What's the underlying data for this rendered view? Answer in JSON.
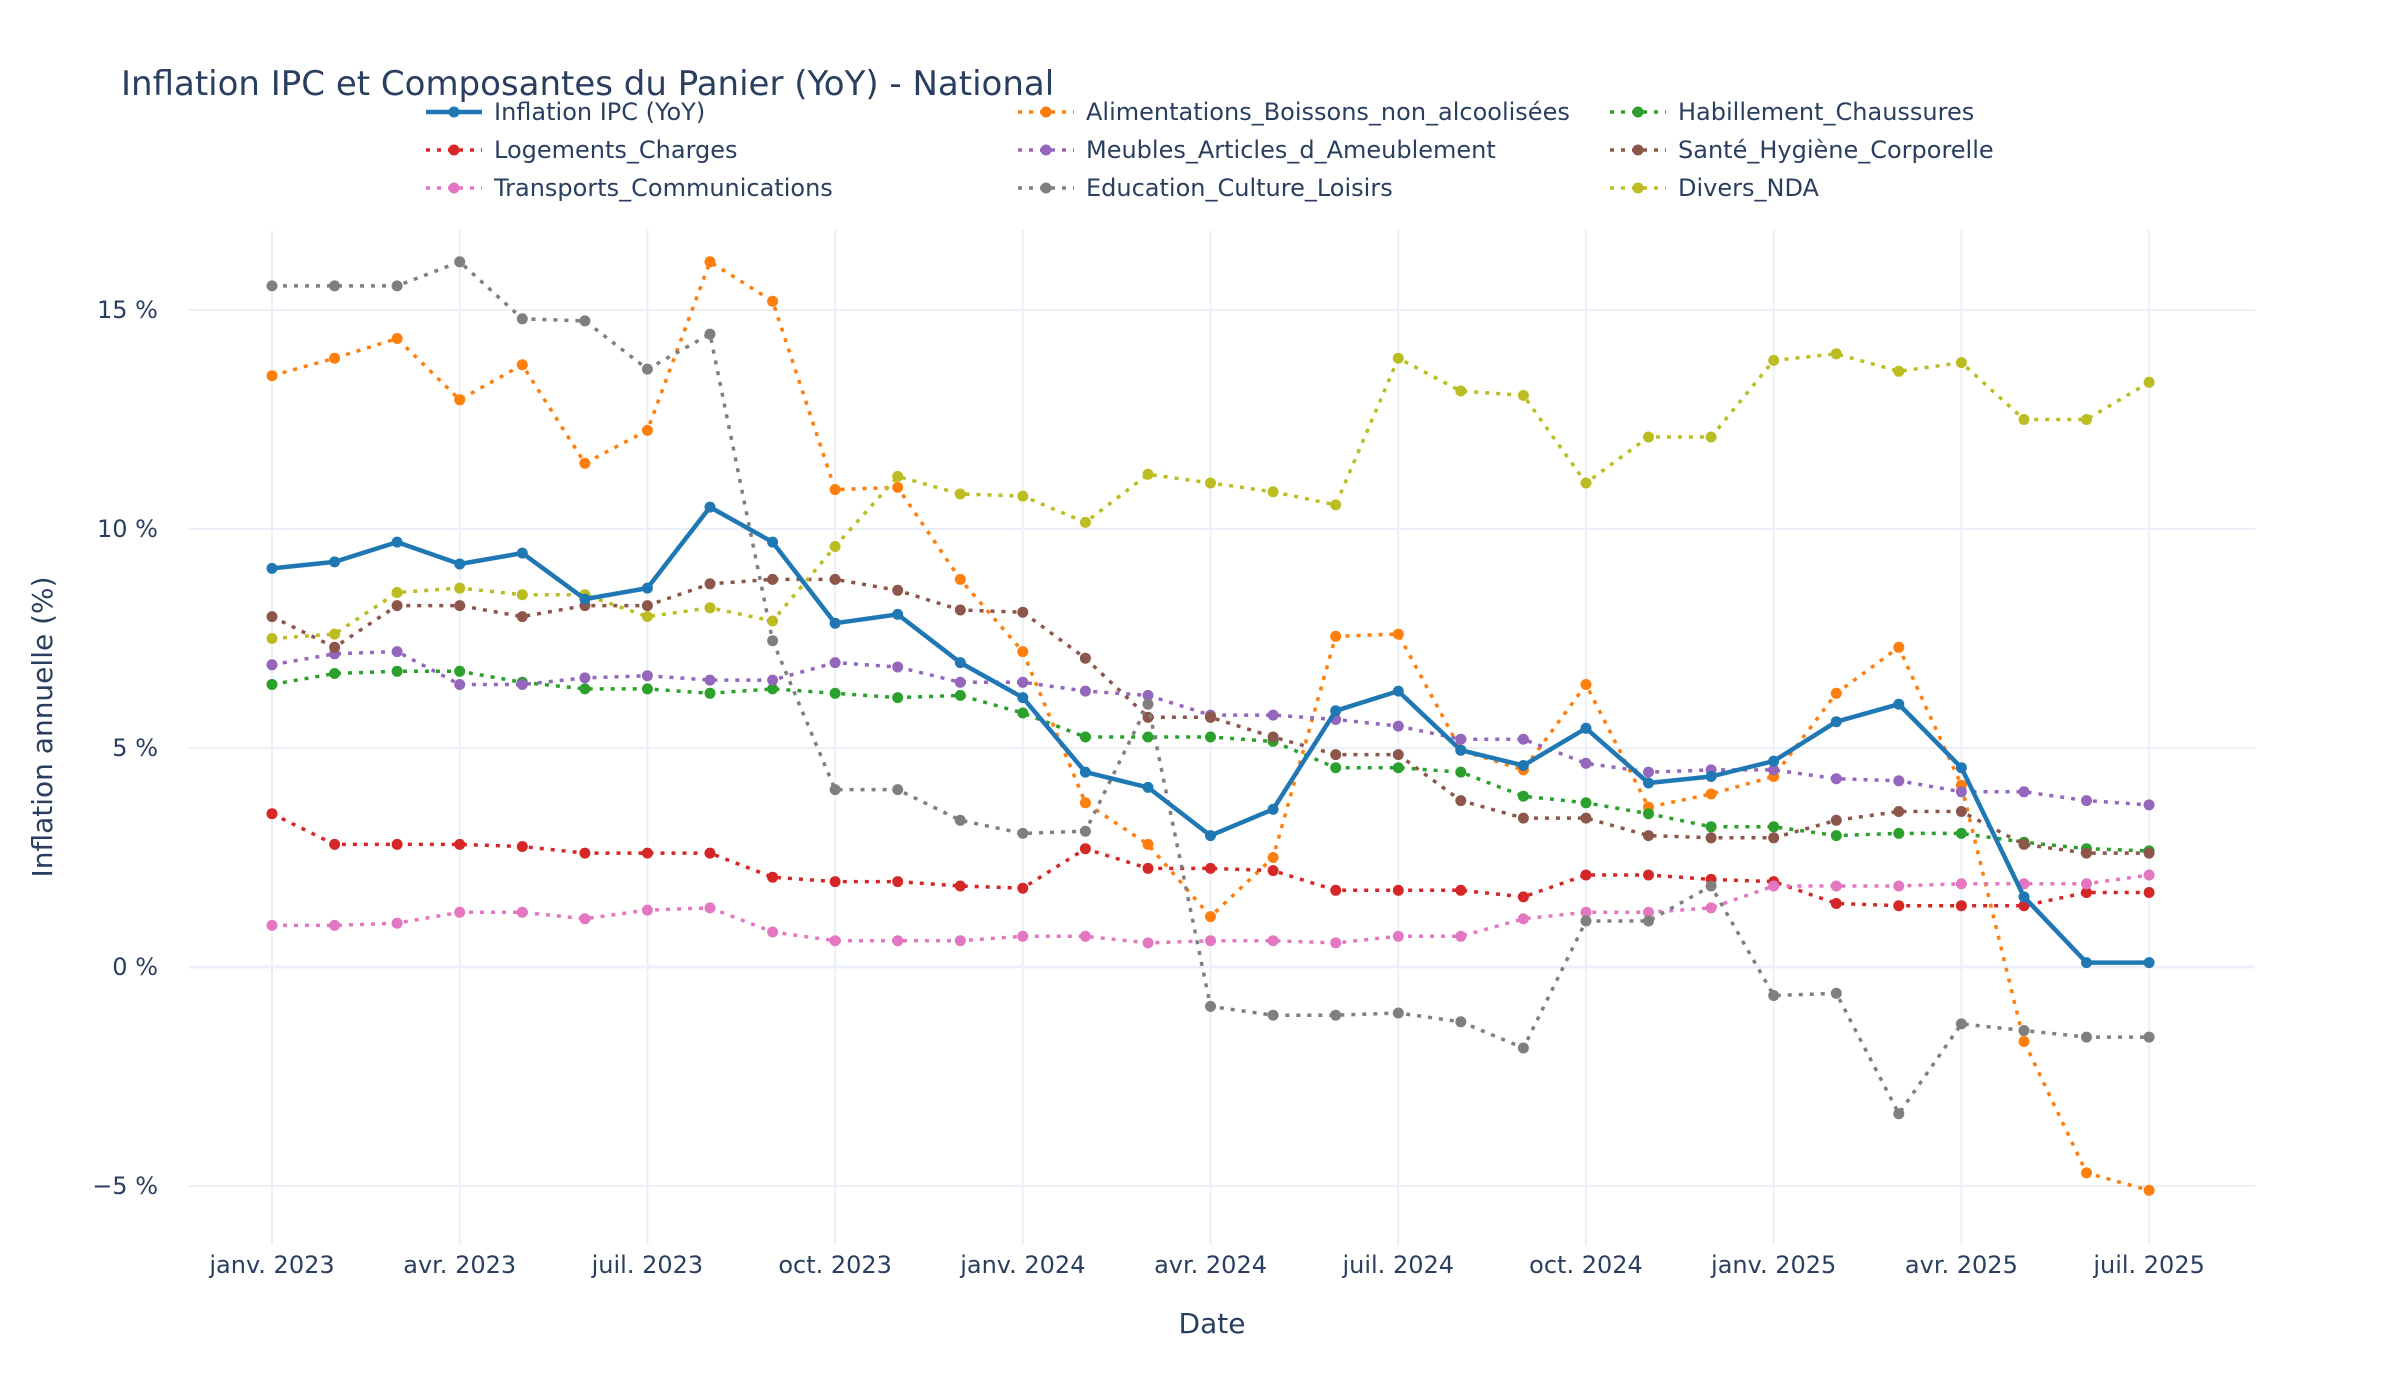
{
  "chart_data": {
    "type": "line",
    "title": "Inflation IPC et Composantes du Panier (YoY) - National",
    "xlabel": "Date",
    "ylabel": "Inflation annuelle (%)",
    "ylim": [
      -6.2,
      17
    ],
    "x_ticks": [
      "janv. 2023",
      "avr. 2023",
      "juil. 2023",
      "oct. 2023",
      "janv. 2024",
      "avr. 2024",
      "juil. 2024",
      "oct. 2024",
      "janv. 2025",
      "avr. 2025",
      "juil. 2025"
    ],
    "y_ticks": [
      {
        "value": 15,
        "label": "15 %"
      },
      {
        "value": 10,
        "label": "10 %"
      },
      {
        "value": 5,
        "label": "5 %"
      },
      {
        "value": 0,
        "label": "0 %"
      },
      {
        "value": -5,
        "label": "−5 %"
      }
    ],
    "grid": true,
    "legend_position": "top",
    "x": [
      "2023-01",
      "2023-02",
      "2023-03",
      "2023-04",
      "2023-05",
      "2023-06",
      "2023-07",
      "2023-08",
      "2023-09",
      "2023-10",
      "2023-11",
      "2023-12",
      "2024-01",
      "2024-02",
      "2024-03",
      "2024-04",
      "2024-05",
      "2024-06",
      "2024-07",
      "2024-08",
      "2024-09",
      "2024-10",
      "2024-11",
      "2024-12",
      "2025-01",
      "2025-02",
      "2025-03",
      "2025-04",
      "2025-05",
      "2025-06",
      "2025-07"
    ],
    "series": [
      {
        "name": "Inflation IPC (YoY)",
        "color": "#1f77b4",
        "dash": "solid",
        "values": [
          9.1,
          9.25,
          9.7,
          9.2,
          9.45,
          8.4,
          8.65,
          10.5,
          9.7,
          7.85,
          8.05,
          6.95,
          6.15,
          4.45,
          4.1,
          3.0,
          3.6,
          5.85,
          6.3,
          4.95,
          4.6,
          5.45,
          4.2,
          4.35,
          4.7,
          5.6,
          6.0,
          4.55,
          1.6,
          0.1,
          0.1
        ]
      },
      {
        "name": "Alimentations_Boissons_non_alcoolisées",
        "color": "#ff7f0e",
        "dash": "dot",
        "values": [
          13.5,
          13.9,
          14.35,
          12.95,
          13.75,
          11.5,
          12.25,
          16.1,
          15.2,
          10.9,
          10.95,
          8.85,
          7.2,
          3.75,
          2.8,
          1.15,
          2.5,
          7.55,
          7.6,
          4.95,
          4.5,
          6.45,
          3.65,
          3.95,
          4.35,
          6.25,
          7.3,
          4.15,
          -1.7,
          -4.7,
          -5.1
        ]
      },
      {
        "name": "Habillement_Chaussures",
        "color": "#2ca02c",
        "dash": "dot",
        "values": [
          6.45,
          6.7,
          6.75,
          6.75,
          6.5,
          6.35,
          6.35,
          6.25,
          6.35,
          6.25,
          6.15,
          6.2,
          5.8,
          5.25,
          5.25,
          5.25,
          5.15,
          4.55,
          4.55,
          4.45,
          3.9,
          3.75,
          3.5,
          3.2,
          3.2,
          3.0,
          3.05,
          3.05,
          2.85,
          2.7,
          2.65
        ]
      },
      {
        "name": "Logements_Charges",
        "color": "#d62728",
        "dash": "dot",
        "values": [
          3.5,
          2.8,
          2.8,
          2.8,
          2.75,
          2.6,
          2.6,
          2.6,
          2.05,
          1.95,
          1.95,
          1.85,
          1.8,
          2.7,
          2.25,
          2.25,
          2.2,
          1.75,
          1.75,
          1.75,
          1.6,
          2.1,
          2.1,
          2.0,
          1.95,
          1.45,
          1.4,
          1.4,
          1.4,
          1.7,
          1.7
        ]
      },
      {
        "name": "Meubles_Articles_d_Ameublement",
        "color": "#9467bd",
        "dash": "dot",
        "values": [
          6.9,
          7.15,
          7.2,
          6.45,
          6.45,
          6.6,
          6.65,
          6.55,
          6.55,
          6.95,
          6.85,
          6.5,
          6.5,
          6.3,
          6.2,
          5.75,
          5.75,
          5.65,
          5.5,
          5.2,
          5.2,
          4.65,
          4.45,
          4.5,
          4.5,
          4.3,
          4.25,
          4.0,
          4.0,
          3.8,
          3.7
        ]
      },
      {
        "name": "Santé_Hygiène_Corporelle",
        "color": "#8c564b",
        "dash": "dot",
        "values": [
          8.0,
          7.3,
          8.25,
          8.25,
          8.0,
          8.25,
          8.25,
          8.75,
          8.85,
          8.85,
          8.6,
          8.15,
          8.1,
          7.05,
          5.7,
          5.7,
          5.25,
          4.85,
          4.85,
          3.8,
          3.4,
          3.4,
          3.0,
          2.95,
          2.95,
          3.35,
          3.55,
          3.55,
          2.8,
          2.6,
          2.6
        ]
      },
      {
        "name": "Transports_Communications",
        "color": "#e377c2",
        "dash": "dot",
        "values": [
          0.95,
          0.95,
          1.0,
          1.25,
          1.25,
          1.1,
          1.3,
          1.35,
          0.8,
          0.6,
          0.6,
          0.6,
          0.7,
          0.7,
          0.55,
          0.6,
          0.6,
          0.55,
          0.7,
          0.7,
          1.1,
          1.25,
          1.25,
          1.35,
          1.85,
          1.85,
          1.85,
          1.9,
          1.9,
          1.9,
          2.1
        ]
      },
      {
        "name": "Education_Culture_Loisirs",
        "color": "#7f7f7f",
        "dash": "dot",
        "values": [
          15.55,
          15.55,
          15.55,
          16.1,
          14.8,
          14.75,
          13.65,
          14.45,
          7.45,
          4.05,
          4.05,
          3.35,
          3.05,
          3.1,
          6.0,
          -0.9,
          -1.1,
          -1.1,
          -1.05,
          -1.25,
          -1.85,
          1.05,
          1.05,
          1.85,
          -0.65,
          -0.6,
          -3.35,
          -1.3,
          -1.45,
          -1.6,
          -1.6
        ]
      },
      {
        "name": "Divers_NDA",
        "color": "#bcbd22",
        "dash": "dot",
        "values": [
          7.5,
          7.6,
          8.55,
          8.65,
          8.5,
          8.5,
          8.0,
          8.2,
          7.9,
          9.6,
          11.2,
          10.8,
          10.75,
          10.15,
          11.25,
          11.05,
          10.85,
          10.55,
          13.9,
          13.15,
          13.05,
          11.05,
          12.1,
          12.1,
          13.85,
          14.0,
          13.6,
          13.8,
          12.5,
          12.5,
          13.35
        ]
      }
    ]
  }
}
